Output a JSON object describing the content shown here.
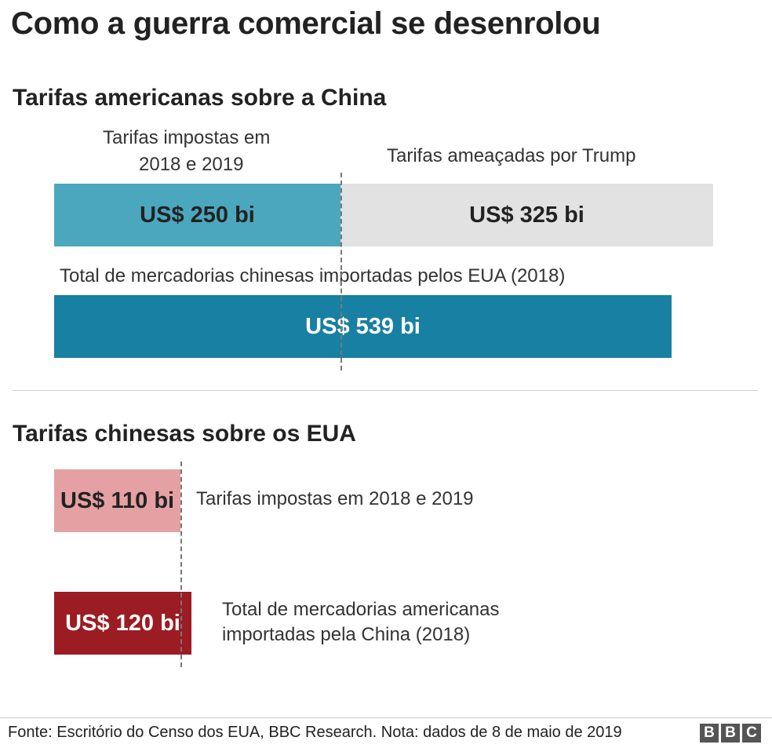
{
  "title": "Como a guerra comercial se desenrolou",
  "us_section": {
    "title": "Tarifas americanas sobre a China",
    "imposed_label_line1": "Tarifas impostas em",
    "imposed_label_line2": "2018 e 2019",
    "threatened_label": "Tarifas ameaçadas por Trump",
    "total_label": "Total de mercadorias chinesas importadas pelos EUA (2018)"
  },
  "cn_section": {
    "title": "Tarifas chinesas sobre os EUA",
    "imposed_label": "Tarifas impostas em 2018 e 2019",
    "total_label_line1": "Total de mercadorias americanas",
    "total_label_line2": "importadas pela China (2018)"
  },
  "footer": {
    "source": "Fonte: Escritório do Censo dos EUA, BBC Research. Nota: dados de 8 de maio de 2019",
    "logo_letters": [
      "B",
      "B",
      "C"
    ]
  },
  "colors": {
    "us_imposed": "#4ba7bd",
    "us_threatened": "#e2e2e2",
    "us_total": "#1880a2",
    "cn_imposed": "#e5a0a3",
    "cn_total": "#9b1c22"
  },
  "chart_data": [
    {
      "type": "bar",
      "title": "Tarifas americanas sobre a China",
      "unit": "US$ bi",
      "series": [
        {
          "name": "Tarifas impostas em 2018 e 2019",
          "value": 250,
          "label": "US$ 250 bi"
        },
        {
          "name": "Tarifas ameaçadas por Trump",
          "value": 325,
          "label": "US$ 325 bi"
        },
        {
          "name": "Total de mercadorias chinesas importadas pelos EUA (2018)",
          "value": 539,
          "label": "US$ 539 bi"
        }
      ]
    },
    {
      "type": "bar",
      "title": "Tarifas chinesas sobre os EUA",
      "unit": "US$ bi",
      "series": [
        {
          "name": "Tarifas impostas em 2018 e 2019",
          "value": 110,
          "label": "US$ 110 bi"
        },
        {
          "name": "Total de mercadorias americanas importadas pela China (2018)",
          "value": 120,
          "label": "US$ 120 bi"
        }
      ]
    }
  ]
}
